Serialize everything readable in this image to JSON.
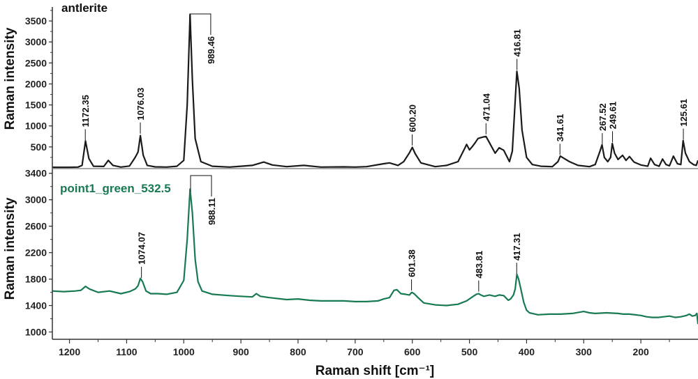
{
  "colors": {
    "top_line": "#1a1a1a",
    "bottom_line": "#187a52",
    "bottom_title": "#187a52",
    "axis": "#333333",
    "separator": "#888888"
  },
  "chart_data": [
    {
      "type": "line",
      "title": "antlerite",
      "ylabel": "Raman intensity",
      "xlabel": "Raman shift [cm⁻¹]",
      "xlim": [
        1230,
        100
      ],
      "ylim": [
        0,
        3800
      ],
      "yticks": [
        500,
        1000,
        1500,
        2000,
        2500,
        3000,
        3500
      ],
      "series": [
        {
          "x": [
            1230,
            1200,
            1185,
            1178,
            1172,
            1166,
            1158,
            1140,
            1132,
            1124,
            1110,
            1095,
            1085,
            1080,
            1076,
            1071,
            1064,
            1050,
            1030,
            1012,
            1000,
            994,
            989,
            985,
            980,
            970,
            950,
            920,
            900,
            880,
            860,
            845,
            820,
            790,
            760,
            720,
            700,
            680,
            650,
            640,
            625,
            615,
            605,
            600,
            595,
            585,
            560,
            540,
            520,
            510,
            505,
            500,
            495,
            490,
            485,
            480,
            475,
            471,
            465,
            455,
            448,
            440,
            430,
            425,
            420,
            417,
            413,
            408,
            400,
            390,
            375,
            355,
            345,
            341,
            335,
            325,
            310,
            290,
            280,
            272,
            268,
            264,
            258,
            253,
            250,
            246,
            240,
            232,
            226,
            220,
            212,
            200,
            188,
            183,
            176,
            168,
            162,
            156,
            150,
            143,
            136,
            130,
            126,
            122,
            115,
            108,
            103,
            100
          ],
          "y": [
            15,
            15,
            20,
            60,
            640,
            220,
            40,
            35,
            180,
            60,
            20,
            45,
            250,
            380,
            770,
            300,
            60,
            25,
            20,
            40,
            180,
            1500,
            3650,
            2100,
            700,
            150,
            40,
            20,
            40,
            60,
            140,
            70,
            30,
            60,
            20,
            25,
            20,
            30,
            100,
            120,
            60,
            150,
            360,
            490,
            340,
            120,
            30,
            60,
            150,
            420,
            560,
            430,
            510,
            600,
            700,
            720,
            740,
            750,
            600,
            350,
            480,
            420,
            150,
            400,
            1600,
            2300,
            1900,
            900,
            250,
            80,
            40,
            30,
            150,
            280,
            230,
            150,
            60,
            30,
            80,
            380,
            550,
            250,
            150,
            250,
            580,
            350,
            200,
            300,
            180,
            270,
            140,
            70,
            40,
            230,
            80,
            40,
            210,
            80,
            50,
            280,
            100,
            80,
            650,
            350,
            150,
            80,
            60,
            180
          ]
        }
      ],
      "peak_labels": [
        {
          "x": 1172.35,
          "text": "1172.35"
        },
        {
          "x": 1076.03,
          "text": "1076.03"
        },
        {
          "x": 989.46,
          "text": "989.46",
          "bracket": true
        },
        {
          "x": 600.2,
          "text": "600.20"
        },
        {
          "x": 471.04,
          "text": "471.04"
        },
        {
          "x": 416.81,
          "text": "416.81"
        },
        {
          "x": 341.61,
          "text": "341.61"
        },
        {
          "x": 267.52,
          "text": "267.52"
        },
        {
          "x": 249.61,
          "text": "249.61"
        },
        {
          "x": 125.61,
          "text": "125.61"
        }
      ]
    },
    {
      "type": "line",
      "title": "point1_green_532.5",
      "ylabel": "Raman intensity",
      "xlabel": "Raman shift [cm⁻¹]",
      "xlim": [
        1230,
        100
      ],
      "xticks": [
        1200,
        1100,
        1000,
        900,
        800,
        700,
        600,
        500,
        400,
        300,
        200
      ],
      "ylim": [
        900,
        3450
      ],
      "yticks": [
        1000,
        1400,
        1800,
        2200,
        2600,
        3000,
        3400
      ],
      "series": [
        {
          "x": [
            1230,
            1210,
            1190,
            1180,
            1172,
            1165,
            1150,
            1130,
            1110,
            1095,
            1085,
            1080,
            1076,
            1072,
            1066,
            1058,
            1045,
            1030,
            1012,
            1000,
            994,
            989,
            985,
            980,
            975,
            968,
            950,
            920,
            900,
            880,
            873,
            866,
            850,
            820,
            800,
            780,
            760,
            740,
            720,
            700,
            680,
            660,
            650,
            640,
            632,
            627,
            620,
            612,
            605,
            601,
            597,
            590,
            580,
            560,
            540,
            520,
            505,
            495,
            488,
            484,
            480,
            475,
            465,
            455,
            448,
            440,
            432,
            428,
            423,
            420,
            417,
            414,
            410,
            405,
            400,
            395,
            390,
            380,
            360,
            340,
            320,
            300,
            290,
            280,
            260,
            240,
            230,
            220,
            200,
            190,
            180,
            170,
            160,
            150,
            140,
            130,
            120,
            115,
            110,
            105,
            102,
            100
          ],
          "y": [
            1620,
            1610,
            1620,
            1630,
            1690,
            1650,
            1600,
            1620,
            1580,
            1610,
            1650,
            1700,
            1810,
            1760,
            1620,
            1580,
            1580,
            1570,
            1600,
            1780,
            2400,
            3160,
            2800,
            2100,
            1760,
            1620,
            1570,
            1550,
            1540,
            1530,
            1580,
            1540,
            1520,
            1490,
            1500,
            1480,
            1470,
            1470,
            1470,
            1460,
            1460,
            1470,
            1500,
            1520,
            1630,
            1640,
            1580,
            1570,
            1560,
            1600,
            1580,
            1520,
            1440,
            1410,
            1400,
            1420,
            1470,
            1530,
            1570,
            1580,
            1560,
            1540,
            1560,
            1540,
            1560,
            1550,
            1480,
            1500,
            1560,
            1650,
            1870,
            1800,
            1650,
            1450,
            1330,
            1290,
            1280,
            1260,
            1270,
            1270,
            1280,
            1310,
            1290,
            1280,
            1290,
            1280,
            1270,
            1270,
            1250,
            1230,
            1220,
            1220,
            1230,
            1240,
            1220,
            1230,
            1250,
            1270,
            1240,
            1250,
            1280,
            1120
          ]
        }
      ],
      "peak_labels": [
        {
          "x": 1074.07,
          "text": "1074.07"
        },
        {
          "x": 988.11,
          "text": "988.11",
          "bracket": true
        },
        {
          "x": 601.38,
          "text": "601.38"
        },
        {
          "x": 483.81,
          "text": "483.81"
        },
        {
          "x": 417.31,
          "text": "417.31"
        }
      ]
    }
  ]
}
